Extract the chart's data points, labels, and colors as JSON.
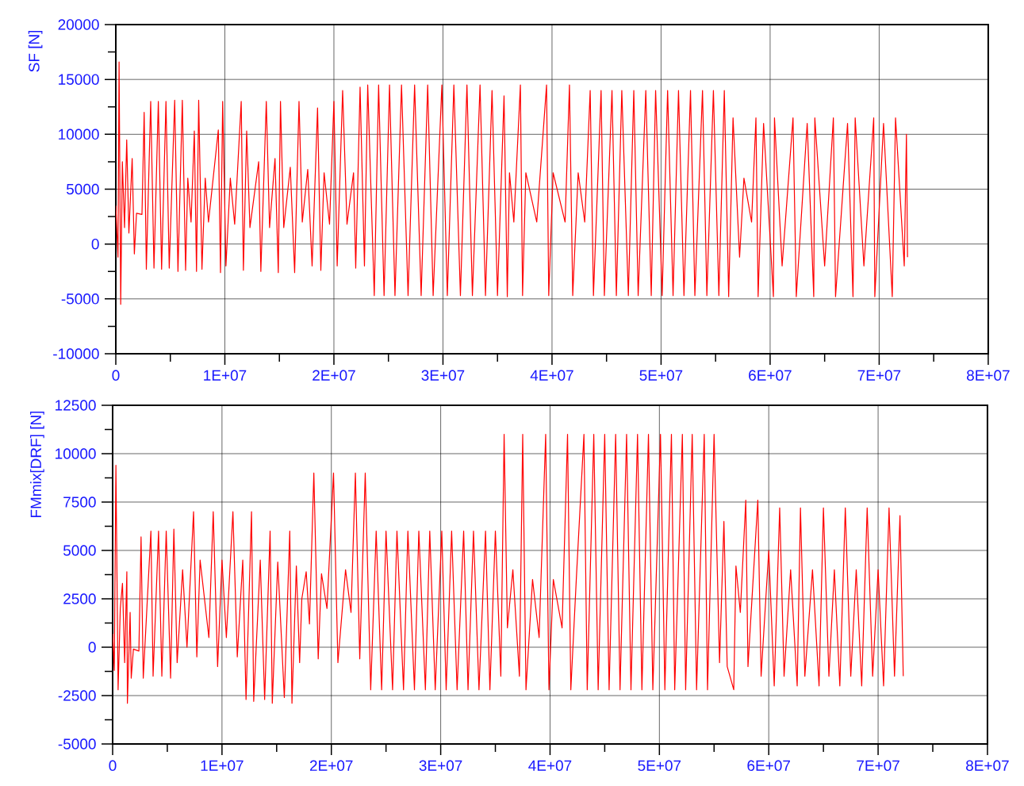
{
  "chart_data": [
    {
      "type": "line",
      "ylabel": "SF [N]",
      "color": "#ff0000",
      "grid": true,
      "xlim": [
        0,
        80000000
      ],
      "ylim": [
        -10000,
        20000
      ],
      "xticks": [
        0,
        {
          "value": 10000000,
          "label": "1E+07"
        },
        {
          "value": 20000000,
          "label": "2E+07"
        },
        {
          "value": 30000000,
          "label": "3E+07"
        },
        {
          "value": 40000000,
          "label": "4E+07"
        },
        {
          "value": 50000000,
          "label": "5E+07"
        },
        {
          "value": 60000000,
          "label": "6E+07"
        },
        {
          "value": 70000000,
          "label": "7E+07"
        },
        {
          "value": 80000000,
          "label": "8E+07"
        }
      ],
      "yticks": [
        -10000,
        -5000,
        0,
        5000,
        10000,
        15000,
        20000
      ],
      "x": [
        0,
        200000.0,
        300000.0,
        450000.0,
        600000.0,
        800000.0,
        1000000.0,
        1200000.0,
        1500000.0,
        1700000.0,
        1900000.0,
        2400000.0,
        2600000.0,
        2800000.0,
        3200000.0,
        3500000.0,
        3900000.0,
        4200000.0,
        4600000.0,
        4900000.0,
        5400000.0,
        5700000.0,
        6100000.0,
        6400000.0,
        6600000.0,
        6900000.0,
        7200000.0,
        7400000.0,
        7600000.0,
        7900000.0,
        8200000.0,
        8500000.0,
        9400000.0,
        9600000.0,
        9800000.0,
        10100000.0,
        10500000.0,
        10900000.0,
        11500000.0,
        11700000.0,
        12000000.0,
        12300000.0,
        13100000.0,
        13300000.0,
        13800000.0,
        14100000.0,
        14600000.0,
        14900000.0,
        15100000.0,
        15400000.0,
        16000000.0,
        16400000.0,
        16800000.0,
        17100000.0,
        17600000.0,
        18000000.0,
        18500000.0,
        18800000.0,
        19100000.0,
        19600000.0,
        20000000.0,
        20300000.0,
        20800000.0,
        21200000.0,
        21800000.0,
        22000000.0,
        22400000.0,
        22800000.0,
        23100000.0,
        23700000.0,
        24100000.0,
        24600000.0,
        25100000.0,
        25600000.0,
        26200000.0,
        26800000.0,
        27400000.0,
        28000000.0,
        28600000.0,
        29100000.0,
        29900000.0,
        30400000.0,
        31000000.0,
        31600000.0,
        32200000.0,
        32700000.0,
        33400000.0,
        33900000.0,
        34500000.0,
        35000000.0,
        35600000.0,
        35900000.0,
        36100000.0,
        36500000.0,
        37100000.0,
        37300000.0,
        37600000.0,
        38600000.0,
        39500000.0,
        39700000.0,
        40100000.0,
        41200000.0,
        41600000.0,
        41900000.0,
        42400000.0,
        43000000.0,
        43500000.0,
        43800000.0,
        44500000.0,
        44800000.0,
        45500000.0,
        45900000.0,
        46400000.0,
        47000000.0,
        47500000.0,
        47900000.0,
        48600000.0,
        49100000.0,
        49500000.0,
        50100000.0,
        50600000.0,
        51100000.0,
        51600000.0,
        52100000.0,
        52700000.0,
        53100000.0,
        53800000.0,
        54200000.0,
        54800000.0,
        55300000.0,
        55800000.0,
        56200000.0,
        56600000.0,
        57200000.0,
        57600000.0,
        58300000.0,
        58700000.0,
        58900000.0,
        59400000.0,
        60300000.0,
        60400000.0,
        61100000.0,
        62100000.0,
        62400000.0,
        63400000.0,
        64000000.0,
        64100000.0,
        65000000.0,
        65800000.0,
        66000000.0,
        67100000.0,
        67600000.0,
        67800000.0,
        68600000.0,
        69500000.0,
        69600000.0,
        70400000.0,
        71200000.0,
        71500000.0,
        72300000.0,
        72500000.0,
        72600000.0
      ],
      "values": [
        3500,
        -1200,
        16600,
        -5500,
        7500,
        1500,
        9500,
        1000,
        7800,
        -900,
        2800,
        2700,
        12000,
        -2300,
        13000,
        -2200,
        13000,
        -2300,
        13000,
        -2200,
        13100,
        -2500,
        13100,
        -2400,
        6000,
        2000,
        10300,
        -2500,
        13100,
        -2300,
        6000,
        2000,
        10400,
        -2600,
        13000,
        -2000,
        6000,
        1800,
        13000,
        -2400,
        10300,
        1500,
        7500,
        -2500,
        13000,
        1500,
        7800,
        -2600,
        13000,
        1500,
        7000,
        -2600,
        13000,
        2000,
        6800,
        -2000,
        12400,
        -2400,
        6500,
        1800,
        13000,
        -2000,
        14000,
        1800,
        6500,
        -2200,
        14300,
        -2000,
        14500,
        -4700,
        14500,
        -4700,
        14500,
        -4700,
        14500,
        -4700,
        14500,
        -4700,
        14500,
        -4700,
        14500,
        -4700,
        14500,
        -4700,
        14500,
        -4700,
        14500,
        -4700,
        14000,
        -4700,
        13500,
        -4800,
        6500,
        2000,
        14500,
        -4700,
        6500,
        2000,
        14500,
        -4700,
        6500,
        2000,
        14500,
        -4700,
        6500,
        2000,
        14000,
        -4700,
        14000,
        -4700,
        14000,
        -4700,
        14000,
        -4700,
        14000,
        -4700,
        14000,
        -4700,
        14000,
        -4700,
        14000,
        -4700,
        14000,
        -4700,
        14000,
        -4700,
        14000,
        -4700,
        14000,
        -4700,
        14000,
        -4800,
        11500,
        -1200,
        6000,
        2000,
        11500,
        -4800,
        11000,
        -4800,
        11500,
        -2000,
        11500,
        -4800,
        11000,
        -4800,
        11500,
        -2000,
        11500,
        -4800,
        11000,
        -4800,
        11500,
        -2000,
        11500,
        -4800,
        11000,
        -4800,
        11500,
        -2000,
        10000,
        -1200
      ]
    },
    {
      "type": "line",
      "ylabel": "FMmix[DRF] [N]",
      "color": "#ff0000",
      "grid": true,
      "xlim": [
        0,
        80000000
      ],
      "ylim": [
        -5000,
        12500
      ],
      "xticks": [
        0,
        {
          "value": 10000000,
          "label": "1E+07"
        },
        {
          "value": 20000000,
          "label": "2E+07"
        },
        {
          "value": 30000000,
          "label": "3E+07"
        },
        {
          "value": 40000000,
          "label": "4E+07"
        },
        {
          "value": 50000000,
          "label": "5E+07"
        },
        {
          "value": 60000000,
          "label": "6E+07"
        },
        {
          "value": 70000000,
          "label": "7E+07"
        },
        {
          "value": 80000000,
          "label": "8E+07"
        }
      ],
      "yticks": [
        -5000,
        -2500,
        0,
        2500,
        5000,
        7500,
        10000,
        12500
      ],
      "x": [
        0,
        150000.0,
        300000.0,
        500000.0,
        700000.0,
        900000.0,
        1100000.0,
        1300000.0,
        1350000.0,
        1600000.0,
        1700000.0,
        1900000.0,
        2400000.0,
        2600000.0,
        2800000.0,
        3500000.0,
        3700000.0,
        4200000.0,
        4500000.0,
        4900000.0,
        5300000.0,
        5600000.0,
        5900000.0,
        6400000.0,
        6800000.0,
        7400000.0,
        7700000.0,
        8000000.0,
        8800000.0,
        9200000.0,
        9600000.0,
        10000000.0,
        10400000.0,
        11000000.0,
        11400000.0,
        11900000.0,
        12200000.0,
        12700000.0,
        12900000.0,
        13500000.0,
        13900000.0,
        14400000.0,
        14600000.0,
        15100000.0,
        15700000.0,
        16200000.0,
        16400000.0,
        16800000.0,
        17100000.0,
        17300000.0,
        17700000.0,
        18000000.0,
        18400000.0,
        18800000.0,
        19100000.0,
        19600000.0,
        20200000.0,
        20600000.0,
        21300000.0,
        21800000.0,
        22200000.0,
        22600000.0,
        23100000.0,
        23600000.0,
        24100000.0,
        24600000.0,
        25000000.0,
        25600000.0,
        26000000.0,
        26600000.0,
        27000000.0,
        27600000.0,
        28000000.0,
        28600000.0,
        29000000.0,
        29500000.0,
        30100000.0,
        30500000.0,
        31000000.0,
        31500000.0,
        32100000.0,
        32500000.0,
        33000000.0,
        33500000.0,
        34100000.0,
        34500000.0,
        35000000.0,
        35500000.0,
        35800000.0,
        36100000.0,
        36600000.0,
        37200000.0,
        37500000.0,
        37800000.0,
        38400000.0,
        39000000.0,
        39600000.0,
        39900000.0,
        40300000.0,
        41100000.0,
        41600000.0,
        41900000.0,
        42400000.0,
        43100000.0,
        43400000.0,
        44000000.0,
        44400000.0,
        45000000.0,
        45400000.0,
        46000000.0,
        46400000.0,
        47000000.0,
        47400000.0,
        48000000.0,
        48400000.0,
        49000000.0,
        49400000.0,
        50100000.0,
        50500000.0,
        51100000.0,
        51400000.0,
        52100000.0,
        52400000.0,
        53000000.0,
        53400000.0,
        54100000.0,
        54400000.0,
        55000000.0,
        55500000.0,
        55900000.0,
        56200000.0,
        56800000.0,
        57000000.0,
        57400000.0,
        57900000.0,
        58100000.0,
        59000000.0,
        59300000.0,
        60000000.0,
        60500000.0,
        61000000.0,
        61400000.0,
        62000000.0,
        62600000.0,
        62900000.0,
        63300000.0,
        64000000.0,
        64600000.0,
        65000000.0,
        65500000.0,
        66000000.0,
        66500000.0,
        67000000.0,
        67500000.0,
        68000000.0,
        68500000.0,
        69000000.0,
        69500000.0,
        70000000.0,
        70500000.0,
        71000000.0,
        71500000.0,
        72000000.0,
        72300000.0
      ],
      "values": [
        700,
        -1200,
        9400,
        -2200,
        2000,
        3300,
        -800,
        3900,
        -2900,
        1800,
        -1600,
        -100,
        -200,
        5700,
        -1600,
        6000,
        -1500,
        6000,
        -1500,
        6000,
        -1600,
        6100,
        -800,
        4000,
        0,
        7000,
        -500,
        4500,
        500,
        7000,
        -1000,
        4500,
        500,
        7000,
        -500,
        4500,
        -2700,
        7000,
        -2800,
        4500,
        -2700,
        6000,
        -2900,
        4400,
        -2600,
        6000,
        -2900,
        4200,
        -800,
        2500,
        3900,
        1200,
        9000,
        -600,
        3800,
        2000,
        9000,
        -800,
        4000,
        1800,
        9000,
        -600,
        9000,
        -2200,
        6000,
        -2200,
        6000,
        -2200,
        6000,
        -2200,
        6000,
        -2200,
        6000,
        -2200,
        6000,
        -2200,
        6000,
        -2200,
        6000,
        -2200,
        6000,
        -2200,
        6000,
        -2200,
        6000,
        -2200,
        6000,
        -1500,
        11000,
        1000,
        4000,
        -1500,
        11000,
        -2200,
        3500,
        500,
        11000,
        -2200,
        3500,
        1000,
        11000,
        -2200,
        3500,
        11000,
        -2200,
        11000,
        -2200,
        11000,
        -2200,
        11000,
        -2200,
        11000,
        -2200,
        11000,
        -2200,
        11000,
        -2200,
        11000,
        -2200,
        11000,
        -2200,
        11000,
        -2200,
        11000,
        -2200,
        11000,
        -2200,
        11000,
        -800,
        6500,
        -1000,
        -2200,
        4200,
        1800,
        7600,
        -1000,
        7600,
        -1500,
        5000,
        -2000,
        7200,
        -1500,
        4000,
        -2000,
        7200,
        -1500,
        4000,
        -2000,
        7200,
        -1500,
        4000,
        -2000,
        7200,
        -1500,
        4000,
        -2000,
        7200,
        -1500,
        4000,
        -2000,
        7200,
        -1500,
        6800,
        -1500
      ]
    }
  ]
}
